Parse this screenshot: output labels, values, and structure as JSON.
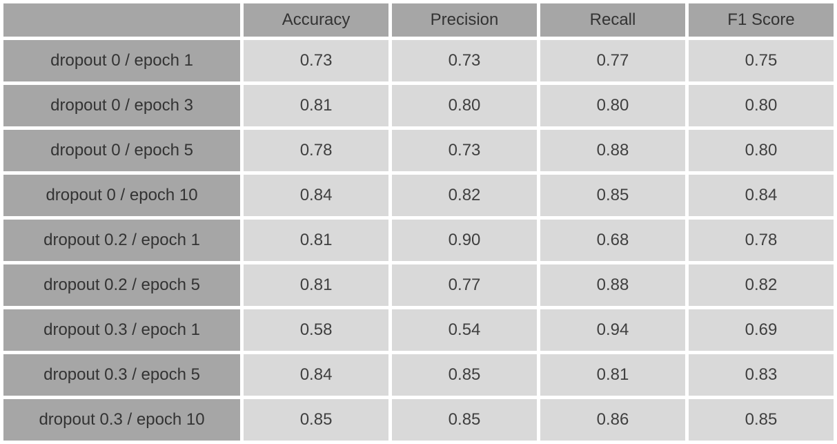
{
  "table": {
    "headers": [
      "",
      "Accuracy",
      "Precision",
      "Recall",
      "F1 Score"
    ],
    "rows": [
      {
        "label": "dropout 0 / epoch 1",
        "values": [
          "0.73",
          "0.73",
          "0.77",
          "0.75"
        ]
      },
      {
        "label": "dropout 0 / epoch 3",
        "values": [
          "0.81",
          "0.80",
          "0.80",
          "0.80"
        ]
      },
      {
        "label": "dropout 0 / epoch 5",
        "values": [
          "0.78",
          "0.73",
          "0.88",
          "0.80"
        ]
      },
      {
        "label": "dropout 0 / epoch 10",
        "values": [
          "0.84",
          "0.82",
          "0.85",
          "0.84"
        ]
      },
      {
        "label": "dropout 0.2 / epoch 1",
        "values": [
          "0.81",
          "0.90",
          "0.68",
          "0.78"
        ]
      },
      {
        "label": "dropout 0.2 / epoch 5",
        "values": [
          "0.81",
          "0.77",
          "0.88",
          "0.82"
        ]
      },
      {
        "label": "dropout 0.3 / epoch 1",
        "values": [
          "0.58",
          "0.54",
          "0.94",
          "0.69"
        ]
      },
      {
        "label": "dropout 0.3 / epoch 5",
        "values": [
          "0.84",
          "0.85",
          "0.81",
          "0.83"
        ]
      },
      {
        "label": "dropout 0.3 / epoch 10",
        "values": [
          "0.85",
          "0.85",
          "0.86",
          "0.85"
        ]
      }
    ]
  },
  "colors": {
    "header_bg": "#a6a6a6",
    "row_label_bg": "#a6a6a6",
    "value_cell_bg": "#d9d9d9",
    "gap": "#ffffff",
    "text": "#3f3f3f"
  },
  "chart_data": {
    "type": "table",
    "title": "",
    "columns": [
      "Accuracy",
      "Precision",
      "Recall",
      "F1 Score"
    ],
    "row_labels": [
      "dropout 0 / epoch 1",
      "dropout 0 / epoch 3",
      "dropout 0 / epoch 5",
      "dropout 0 / epoch 10",
      "dropout 0.2 / epoch 1",
      "dropout 0.2 / epoch 5",
      "dropout 0.3 / epoch 1",
      "dropout 0.3 / epoch 5",
      "dropout 0.3 / epoch 10"
    ],
    "values": [
      [
        0.73,
        0.73,
        0.77,
        0.75
      ],
      [
        0.81,
        0.8,
        0.8,
        0.8
      ],
      [
        0.78,
        0.73,
        0.88,
        0.8
      ],
      [
        0.84,
        0.82,
        0.85,
        0.84
      ],
      [
        0.81,
        0.9,
        0.68,
        0.78
      ],
      [
        0.81,
        0.77,
        0.88,
        0.82
      ],
      [
        0.58,
        0.54,
        0.94,
        0.69
      ],
      [
        0.84,
        0.85,
        0.81,
        0.83
      ],
      [
        0.85,
        0.85,
        0.86,
        0.85
      ]
    ]
  }
}
